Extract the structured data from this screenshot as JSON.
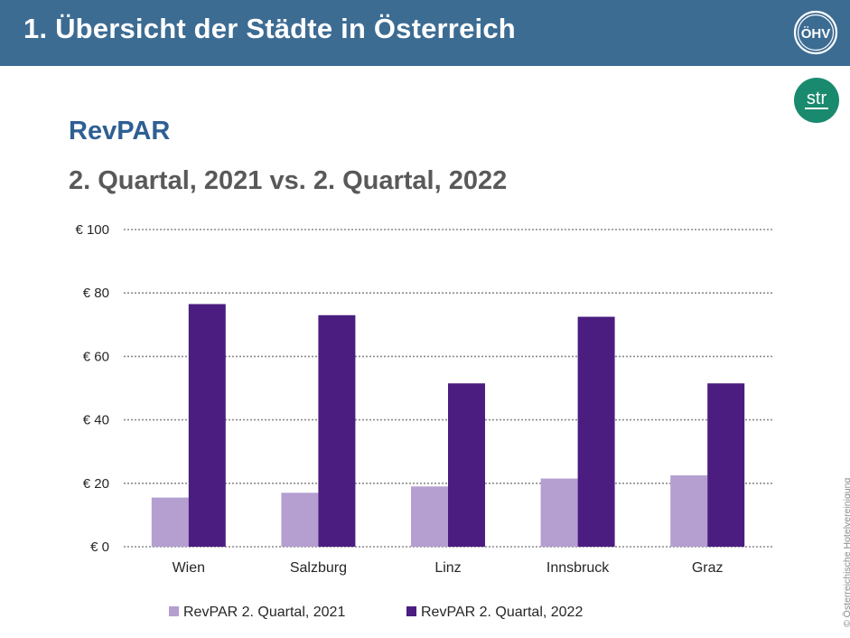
{
  "header": {
    "title": "1. Übersicht der Städte in Österreich"
  },
  "logos": {
    "ohv_text": "ÖHV",
    "str_text": "str"
  },
  "subtitle": "RevPAR",
  "copyright": "© Österreichische Hotelvereinigung",
  "colors": {
    "header": "#3d6c93",
    "series_2021": "#b49fd0",
    "series_2022": "#4b1d80",
    "str_logo": "#1a8a6e"
  },
  "chart_data": {
    "type": "bar",
    "title": "2. Quartal, 2021 vs. 2. Quartal, 2022",
    "categories": [
      "Wien",
      "Salzburg",
      "Linz",
      "Innsbruck",
      "Graz"
    ],
    "series": [
      {
        "name": "RevPAR 2. Quartal, 2021",
        "values": [
          15.5,
          17,
          19,
          21.5,
          22.5
        ]
      },
      {
        "name": "RevPAR 2. Quartal, 2022",
        "values": [
          76.5,
          73,
          51.5,
          72.5,
          51.5
        ]
      }
    ],
    "yticks": [
      "€ 0",
      "€ 20",
      "€ 40",
      "€ 60",
      "€ 80",
      "€ 100"
    ],
    "ylim": [
      0,
      100
    ],
    "grid": true,
    "legend": "bottom"
  }
}
